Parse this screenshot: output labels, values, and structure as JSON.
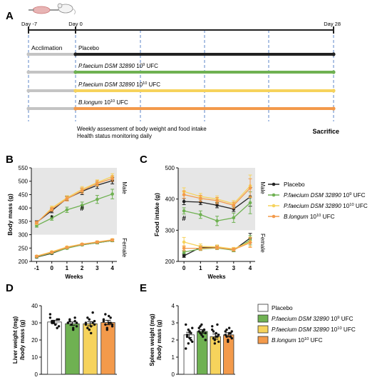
{
  "panels": {
    "A": "A",
    "B": "B",
    "C": "C",
    "D": "D",
    "E": "E"
  },
  "colors": {
    "placebo": "#222222",
    "pf9": "#6fb152",
    "pf10": "#f6d35c",
    "blongum": "#f39a4b",
    "shade": "#e6e6e6",
    "timeline": "#222222",
    "acclimation": "#c4c4c4",
    "dashed": "#5b86c8"
  },
  "timeline": {
    "day_labels": [
      "Day -7",
      "Day 0",
      "Day 28"
    ],
    "acclimation_label": "Acclimation",
    "groups": [
      {
        "species": "Placebo",
        "dose": "",
        "exp": "",
        "unit": "",
        "color_key": "placebo"
      },
      {
        "species": "P.faecium DSM 32890",
        "dose": "10",
        "exp": "9",
        "unit": "UFC",
        "color_key": "pf9"
      },
      {
        "species": "P.faecium DSM 32890",
        "dose": "10",
        "exp": "10",
        "unit": "UFC",
        "color_key": "pf10"
      },
      {
        "species": "B.longum",
        "dose": "10",
        "exp": "10",
        "unit": "UFC",
        "color_key": "blongum"
      }
    ],
    "note_line1": "Weekly assessment of body weight and food intake",
    "note_line2": "Health status monitoring daily",
    "sacrifice": "Sacrifice"
  },
  "legend_groups": [
    {
      "species": "Placebo",
      "dose": "",
      "exp": "",
      "unit": "",
      "color_key": "placebo"
    },
    {
      "species": "P.faecium DSM 32890",
      "dose": "10",
      "exp": "9",
      "unit": "UFC",
      "color_key": "pf9"
    },
    {
      "species": "P.faecium DSM 32890",
      "dose": "10",
      "exp": "10",
      "unit": "UFC",
      "color_key": "pf10"
    },
    {
      "species": "B.longum",
      "dose": "10",
      "exp": "10",
      "unit": "UFC",
      "color_key": "blongum"
    }
  ],
  "chart_data": [
    {
      "panel": "B",
      "type": "line",
      "xlabel": "Weeks",
      "ylabel": "Body mass (g)",
      "x": [
        -1,
        0,
        1,
        2,
        3,
        4
      ],
      "xlim": [
        -1.35,
        4.3
      ],
      "ylim": [
        200,
        550
      ],
      "yticks": [
        200,
        250,
        300,
        350,
        400,
        450,
        500,
        550
      ],
      "shaded_range": [
        300,
        550
      ],
      "side_labels": [
        "Male",
        "Female"
      ],
      "annotations": [
        {
          "text": "*",
          "x": 0,
          "y": 355
        },
        {
          "text": "#",
          "x": 2,
          "y": 390
        }
      ],
      "series": [
        {
          "group": 0,
          "values": [
            346,
            390,
            435,
            462,
            485,
            502
          ],
          "errors": [
            6,
            8,
            8,
            12,
            12,
            12
          ]
        },
        {
          "group": 1,
          "values": [
            334,
            362,
            393,
            410,
            432,
            452
          ],
          "errors": [
            6,
            8,
            10,
            12,
            15,
            18
          ]
        },
        {
          "group": 2,
          "values": [
            343,
            400,
            438,
            470,
            495,
            518
          ],
          "errors": [
            5,
            7,
            8,
            10,
            10,
            10
          ]
        },
        {
          "group": 3,
          "values": [
            345,
            395,
            434,
            465,
            492,
            510
          ],
          "errors": [
            5,
            7,
            8,
            10,
            10,
            10
          ]
        },
        {
          "group": 0,
          "values": [
            216,
            230,
            250,
            262,
            270,
            278
          ],
          "errors": [
            3,
            3,
            3,
            3,
            4,
            4
          ]
        },
        {
          "group": 1,
          "values": [
            217,
            232,
            249,
            262,
            270,
            278
          ],
          "errors": [
            3,
            3,
            3,
            3,
            4,
            4
          ]
        },
        {
          "group": 2,
          "values": [
            220,
            236,
            254,
            265,
            273,
            281
          ],
          "errors": [
            3,
            3,
            3,
            3,
            4,
            4
          ]
        },
        {
          "group": 3,
          "values": [
            219,
            234,
            252,
            264,
            272,
            280
          ],
          "errors": [
            3,
            3,
            3,
            3,
            4,
            4
          ]
        }
      ]
    },
    {
      "panel": "C",
      "type": "line",
      "xlabel": "Weeks",
      "ylabel": "Food intake (g)",
      "x": [
        0,
        1,
        2,
        3,
        4
      ],
      "xlim": [
        -0.35,
        4.3
      ],
      "ylim": [
        200,
        500
      ],
      "yticks": [
        200,
        300,
        400,
        500
      ],
      "shaded_range": [
        300,
        500
      ],
      "side_labels": [
        "Male",
        "Female"
      ],
      "annotations": [
        {
          "text": "#",
          "x": 0,
          "y": 330
        }
      ],
      "series": [
        {
          "group": 0,
          "values": [
            392,
            390,
            380,
            368,
            407
          ],
          "errors": [
            10,
            8,
            8,
            8,
            30
          ]
        },
        {
          "group": 1,
          "values": [
            362,
            350,
            330,
            340,
            388
          ],
          "errors": [
            10,
            12,
            15,
            15,
            35
          ]
        },
        {
          "group": 2,
          "values": [
            424,
            408,
            400,
            385,
            442
          ],
          "errors": [
            12,
            10,
            10,
            10,
            35
          ]
        },
        {
          "group": 3,
          "values": [
            414,
            402,
            395,
            380,
            435
          ],
          "errors": [
            12,
            10,
            10,
            10,
            30
          ]
        },
        {
          "group": 0,
          "values": [
            218,
            245,
            245,
            236,
            275
          ],
          "errors": [
            5,
            5,
            5,
            5,
            15
          ]
        },
        {
          "group": 1,
          "values": [
            230,
            240,
            243,
            236,
            268
          ],
          "errors": [
            5,
            5,
            5,
            5,
            15
          ]
        },
        {
          "group": 2,
          "values": [
            262,
            248,
            247,
            240,
            263
          ],
          "errors": [
            15,
            8,
            6,
            5,
            15
          ]
        },
        {
          "group": 3,
          "values": [
            242,
            242,
            244,
            238,
            260
          ],
          "errors": [
            8,
            6,
            5,
            5,
            15
          ]
        }
      ]
    },
    {
      "panel": "D",
      "type": "bar",
      "ylabel": "Liver weight (mg)\n/body mass (g)",
      "ylim": [
        0,
        40
      ],
      "yticks": [
        0,
        10,
        20,
        30,
        40
      ],
      "values": [
        30.5,
        29.5,
        29.5,
        30.2
      ],
      "errors": [
        1.0,
        1.0,
        1.2,
        1.3
      ],
      "points": [
        [
          33,
          31,
          30,
          29,
          32,
          28,
          35,
          30,
          31,
          29,
          27,
          32
        ],
        [
          30,
          31,
          29,
          27,
          33,
          28,
          30,
          32,
          29,
          26,
          31,
          30
        ],
        [
          30,
          33,
          26,
          28,
          36,
          31,
          29,
          27,
          32,
          24,
          30,
          29
        ],
        [
          32,
          29,
          26,
          34,
          30,
          28,
          31,
          35,
          27,
          30,
          33,
          29
        ]
      ]
    },
    {
      "panel": "E",
      "type": "bar",
      "ylabel": "Spleen weight (mg)\n/body mass (g)",
      "ylim": [
        0,
        4
      ],
      "yticks": [
        0,
        1,
        2,
        3,
        4
      ],
      "values": [
        2.3,
        2.5,
        2.2,
        2.3
      ],
      "errors": [
        0.15,
        0.1,
        0.15,
        0.12
      ],
      "points": [
        [
          2.9,
          2.2,
          1.8,
          2.5,
          2.0,
          2.7,
          1.5,
          2.3,
          2.6,
          2.1,
          2.4,
          1.9
        ],
        [
          2.7,
          2.4,
          2.9,
          2.2,
          2.6,
          2.0,
          2.5,
          2.8,
          2.3,
          2.5,
          2.6,
          2.4
        ],
        [
          2.6,
          2.1,
          1.8,
          2.4,
          2.2,
          1.9,
          2.8,
          2.5,
          2.0,
          2.2,
          2.9,
          2.3
        ],
        [
          2.5,
          2.2,
          2.0,
          2.7,
          2.4,
          2.1,
          2.3,
          2.6,
          1.9,
          2.4,
          2.2,
          2.5
        ]
      ]
    }
  ]
}
